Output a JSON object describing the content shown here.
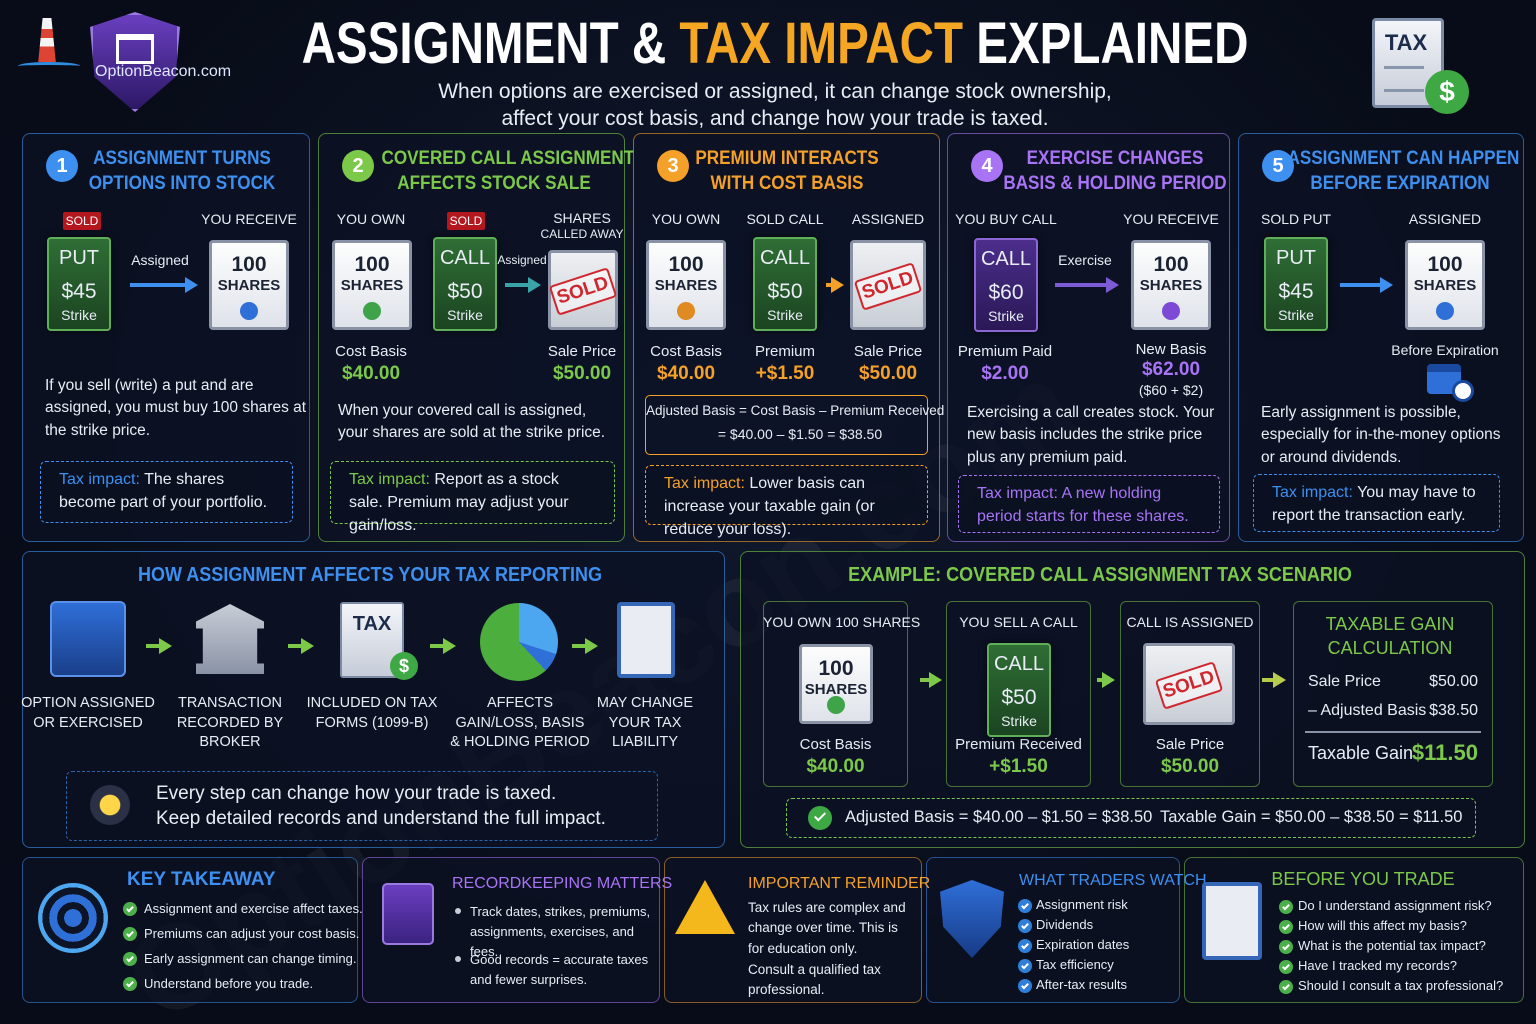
{
  "header": {
    "logo": "OptionBeacon.com",
    "title": [
      "ASSIGNMENT &",
      "TAX IMPACT",
      "EXPLAINED"
    ],
    "subtitle": [
      "When options are exercised or assigned, it can change stock ownership,",
      "affect your cost basis, and change how your trade is taxed."
    ],
    "badge": {
      "label": "TAX",
      "coin": "$"
    }
  },
  "watermark": "OptionBeacon.com",
  "cards": [
    {
      "number": "1",
      "title": [
        "ASSIGNMENT TURNS",
        "OPTIONS INTO STOCK"
      ],
      "tag": "SOLD",
      "labels": [
        "YOU RECEIVE"
      ],
      "option": [
        "PUT",
        "$45",
        "Strike"
      ],
      "arrow": "Assigned",
      "shares": [
        "100",
        "SHARES"
      ],
      "body": "If you sell (write) a put and are assigned, you must buy 100 shares at the strike price.",
      "tax": [
        "Tax impact:",
        "The shares become part of your portfolio."
      ]
    },
    {
      "number": "2",
      "title": [
        "COVERED CALL ASSIGNMENT",
        "AFFECTS STOCK SALE"
      ],
      "tag": "SOLD",
      "labels": [
        "YOU OWN",
        "SHARES",
        "CALLED AWAY"
      ],
      "shares": [
        "100",
        "SHARES"
      ],
      "option": [
        "CALL",
        "$50",
        "Strike"
      ],
      "arrow": "Assigned",
      "stamp": "SOLD",
      "values": [
        [
          "Cost Basis",
          "$40.00"
        ],
        [
          "Sale Price",
          "$50.00"
        ]
      ],
      "body": "When your covered call is assigned, your shares are sold at the strike price.",
      "tax": [
        "Tax impact:",
        "Report as a stock sale. Premium may adjust your gain/loss."
      ]
    },
    {
      "number": "3",
      "title": [
        "PREMIUM INTERACTS",
        "WITH COST BASIS"
      ],
      "labels": [
        "YOU OWN",
        "SOLD CALL",
        "ASSIGNED"
      ],
      "shares": [
        "100",
        "SHARES"
      ],
      "option": [
        "CALL",
        "$50",
        "Strike"
      ],
      "stamp": "SOLD",
      "values": [
        [
          "Cost Basis",
          "$40.00"
        ],
        [
          "Premium",
          "+$1.50"
        ],
        [
          "Sale Price",
          "$50.00"
        ]
      ],
      "formula": [
        "Adjusted Basis = Cost Basis – Premium Received",
        "= $40.00 – $1.50 = $38.50"
      ],
      "tax": [
        "Tax impact:",
        "Lower basis can increase your taxable gain (or reduce your loss)."
      ]
    },
    {
      "number": "4",
      "title": [
        "EXERCISE CHANGES",
        "BASIS & HOLDING PERIOD"
      ],
      "labels": [
        "YOU BUY CALL",
        "YOU RECEIVE"
      ],
      "option": [
        "CALL",
        "$60",
        "Strike"
      ],
      "arrow": "Exercise",
      "shares": [
        "100",
        "SHARES"
      ],
      "values": [
        [
          "Premium Paid",
          "$2.00"
        ],
        [
          "New Basis",
          "$62.00",
          "($60 + $2)"
        ]
      ],
      "body": "Exercising a call creates stock. Your new basis includes the strike price plus any premium paid.",
      "tax": [
        "Tax impact:",
        "A new holding period starts for these shares."
      ]
    },
    {
      "number": "5",
      "title": [
        "ASSIGNMENT CAN HAPPEN",
        "BEFORE EXPIRATION"
      ],
      "labels": [
        "SOLD PUT",
        "ASSIGNED"
      ],
      "option": [
        "PUT",
        "$45",
        "Strike"
      ],
      "shares": [
        "100",
        "SHARES"
      ],
      "caption": "Before Expiration",
      "body": "Early assignment is possible, especially for in-the-money options or around dividends.",
      "tax": [
        "Tax impact:",
        "You may have to report the transaction early."
      ]
    }
  ],
  "flow": {
    "title": "HOW ASSIGNMENT AFFECTS YOUR TAX REPORTING",
    "steps": [
      "OPTION ASSIGNED OR EXERCISED",
      "TRANSACTION RECORDED BY BROKER",
      "INCLUDED ON TAX FORMS (1099-B)",
      "AFFECTS GAIN/LOSS, BASIS & HOLDING PERIOD",
      "MAY CHANGE YOUR TAX LIABILITY"
    ],
    "tax_icon": [
      "TAX",
      "$"
    ],
    "note": [
      "Every step can change how your trade is taxed.",
      "Keep detailed records and understand the full impact."
    ]
  },
  "example": {
    "title": "EXAMPLE: COVERED CALL ASSIGNMENT TAX SCENARIO",
    "steps": [
      {
        "heading": "YOU OWN 100 SHARES",
        "shares": [
          "100",
          "SHARES"
        ],
        "caption": "Cost Basis",
        "value": "$40.00"
      },
      {
        "heading": "YOU SELL A CALL",
        "option": [
          "CALL",
          "$50",
          "Strike"
        ],
        "caption": "Premium Received",
        "value": "+$1.50"
      },
      {
        "heading": "CALL IS ASSIGNED",
        "stamp": "SOLD",
        "caption": "Sale Price",
        "value": "$50.00"
      }
    ],
    "calc": {
      "title": [
        "TAXABLE GAIN",
        "CALCULATION"
      ],
      "rows": [
        [
          "Sale Price",
          "$50.00"
        ],
        [
          "– Adjusted Basis",
          "$38.50"
        ]
      ],
      "total": [
        "Taxable Gain",
        "$11.50"
      ]
    },
    "summary": [
      "Adjusted Basis = $40.00 – $1.50 = $38.50",
      "Taxable Gain = $50.00 – $38.50 = $11.50"
    ]
  },
  "footer": [
    {
      "title": "KEY TAKEAWAY",
      "items": [
        "Assignment and exercise affect taxes.",
        "Premiums can adjust your cost basis.",
        "Early assignment can change timing.",
        "Understand before you trade."
      ]
    },
    {
      "title": "RECORDKEEPING MATTERS",
      "items": [
        "Track dates, strikes, premiums, assignments, exercises, and fees.",
        "Good records = accurate taxes and fewer surprises."
      ]
    },
    {
      "title": "IMPORTANT REMINDER",
      "items": [
        "Tax rules are complex and change over time. This is for education only.",
        "Consult a qualified tax professional."
      ]
    },
    {
      "title": "WHAT TRADERS WATCH",
      "items": [
        "Assignment risk",
        "Dividends",
        "Expiration dates",
        "Tax efficiency",
        "After-tax results"
      ]
    },
    {
      "title": "BEFORE YOU TRADE",
      "items": [
        "Do I understand assignment risk?",
        "How will this affect my basis?",
        "What is the potential tax impact?",
        "Have I tracked my records?",
        "Should I consult a tax professional?"
      ]
    }
  ]
}
